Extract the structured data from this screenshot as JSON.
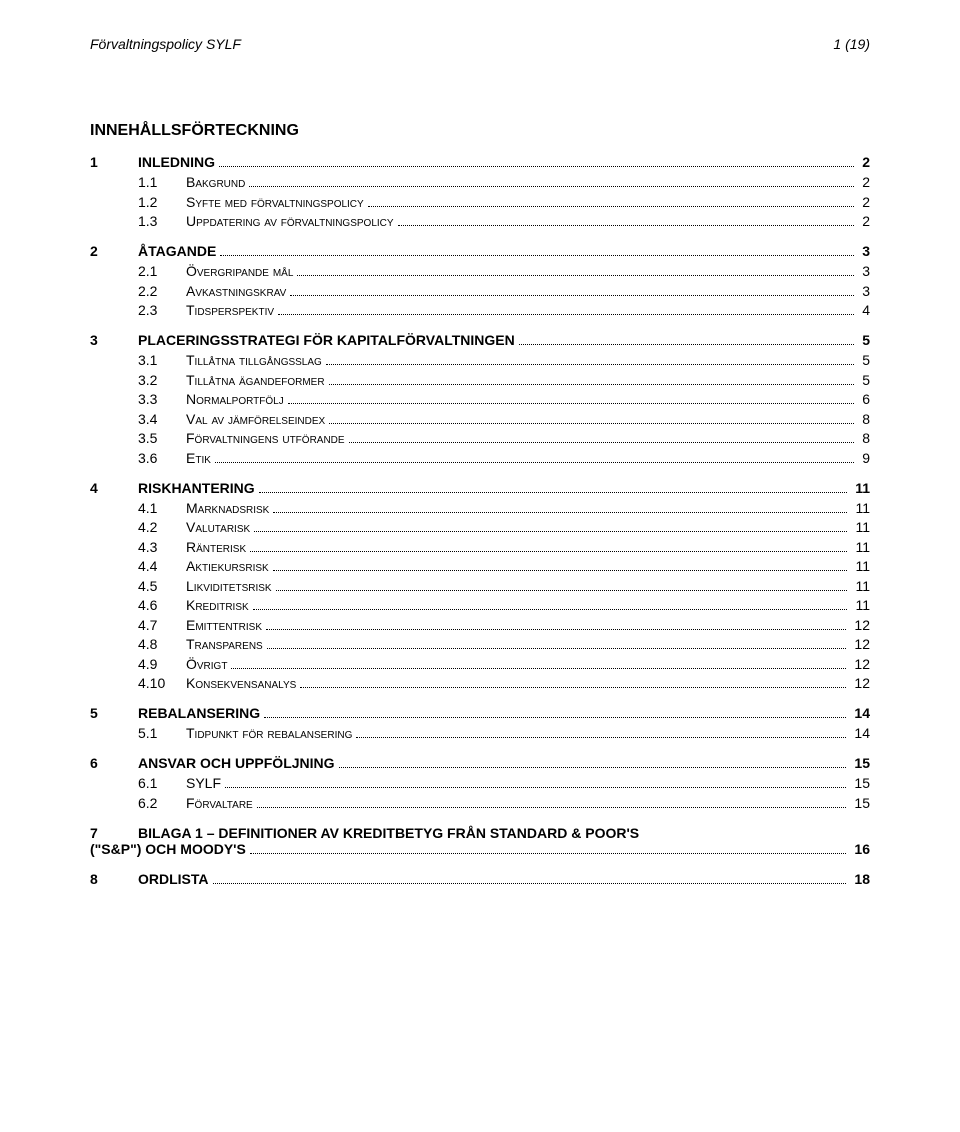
{
  "header": {
    "left": "Förvaltningspolicy SYLF",
    "right": "1 (19)"
  },
  "toc_title": "INNEHÅLLSFÖRTECKNING",
  "toc": [
    {
      "level": 1,
      "num": "1",
      "label": "INLEDNING",
      "page": "2"
    },
    {
      "level": 2,
      "num": "1.1",
      "label": "Bakgrund",
      "page": "2",
      "smallcaps": true
    },
    {
      "level": 2,
      "num": "1.2",
      "label": "Syfte med förvaltningspolicy",
      "page": "2",
      "smallcaps": true
    },
    {
      "level": 2,
      "num": "1.3",
      "label": "Uppdatering av förvaltningspolicy",
      "page": "2",
      "smallcaps": true
    },
    {
      "level": 1,
      "num": "2",
      "label": "ÅTAGANDE",
      "page": "3"
    },
    {
      "level": 2,
      "num": "2.1",
      "label": "Övergripande mål",
      "page": "3",
      "smallcaps": true
    },
    {
      "level": 2,
      "num": "2.2",
      "label": "Avkastningskrav",
      "page": "3",
      "smallcaps": true
    },
    {
      "level": 2,
      "num": "2.3",
      "label": "Tidsperspektiv",
      "page": "4",
      "smallcaps": true
    },
    {
      "level": 1,
      "num": "3",
      "label": "PLACERINGSSTRATEGI FÖR KAPITALFÖRVALTNINGEN",
      "page": "5"
    },
    {
      "level": 2,
      "num": "3.1",
      "label": "Tillåtna tillgångsslag",
      "page": "5",
      "smallcaps": true
    },
    {
      "level": 2,
      "num": "3.2",
      "label": "Tillåtna ägandeformer",
      "page": "5",
      "smallcaps": true
    },
    {
      "level": 2,
      "num": "3.3",
      "label": "Normalportfölj",
      "page": "6",
      "smallcaps": true
    },
    {
      "level": 2,
      "num": "3.4",
      "label": "Val av jämförelseindex",
      "page": "8",
      "smallcaps": true
    },
    {
      "level": 2,
      "num": "3.5",
      "label": "Förvaltningens utförande",
      "page": "8",
      "smallcaps": true
    },
    {
      "level": 2,
      "num": "3.6",
      "label": "Etik",
      "page": "9",
      "smallcaps": true
    },
    {
      "level": 1,
      "num": "4",
      "label": "RISKHANTERING",
      "page": "11"
    },
    {
      "level": 2,
      "num": "4.1",
      "label": "Marknadsrisk",
      "page": "11",
      "smallcaps": true
    },
    {
      "level": 2,
      "num": "4.2",
      "label": "Valutarisk",
      "page": "11",
      "smallcaps": true
    },
    {
      "level": 2,
      "num": "4.3",
      "label": "Ränterisk",
      "page": "11",
      "smallcaps": true
    },
    {
      "level": 2,
      "num": "4.4",
      "label": "Aktiekursrisk",
      "page": "11",
      "smallcaps": true
    },
    {
      "level": 2,
      "num": "4.5",
      "label": "Likviditetsrisk",
      "page": "11",
      "smallcaps": true
    },
    {
      "level": 2,
      "num": "4.6",
      "label": "Kreditrisk",
      "page": "11",
      "smallcaps": true
    },
    {
      "level": 2,
      "num": "4.7",
      "label": "Emittentrisk",
      "page": "12",
      "smallcaps": true
    },
    {
      "level": 2,
      "num": "4.8",
      "label": "Transparens",
      "page": "12",
      "smallcaps": true
    },
    {
      "level": 2,
      "num": "4.9",
      "label": "Övrigt",
      "page": "12",
      "smallcaps": true
    },
    {
      "level": 2,
      "num": "4.10",
      "label": "Konsekvensanalys",
      "page": "12",
      "smallcaps": true
    },
    {
      "level": 1,
      "num": "5",
      "label": "REBALANSERING",
      "page": "14"
    },
    {
      "level": 2,
      "num": "5.1",
      "label": "Tidpunkt för rebalansering",
      "page": "14",
      "smallcaps": true
    },
    {
      "level": 1,
      "num": "6",
      "label": "ANSVAR OCH UPPFÖLJNING",
      "page": "15"
    },
    {
      "level": 2,
      "num": "6.1",
      "label": "SYLF",
      "page": "15"
    },
    {
      "level": 2,
      "num": "6.2",
      "label": "Förvaltare",
      "page": "15",
      "smallcaps": true
    },
    {
      "level": 1,
      "num": "7",
      "label": "BILAGA 1 – DEFINITIONER AV KREDITBETYG FRÅN STANDARD & POOR'S (\"S&P\") OCH MOODY'S",
      "page": "16",
      "wrap": true
    },
    {
      "level": 1,
      "num": "8",
      "label": "ORDLISTA",
      "page": "18"
    }
  ]
}
